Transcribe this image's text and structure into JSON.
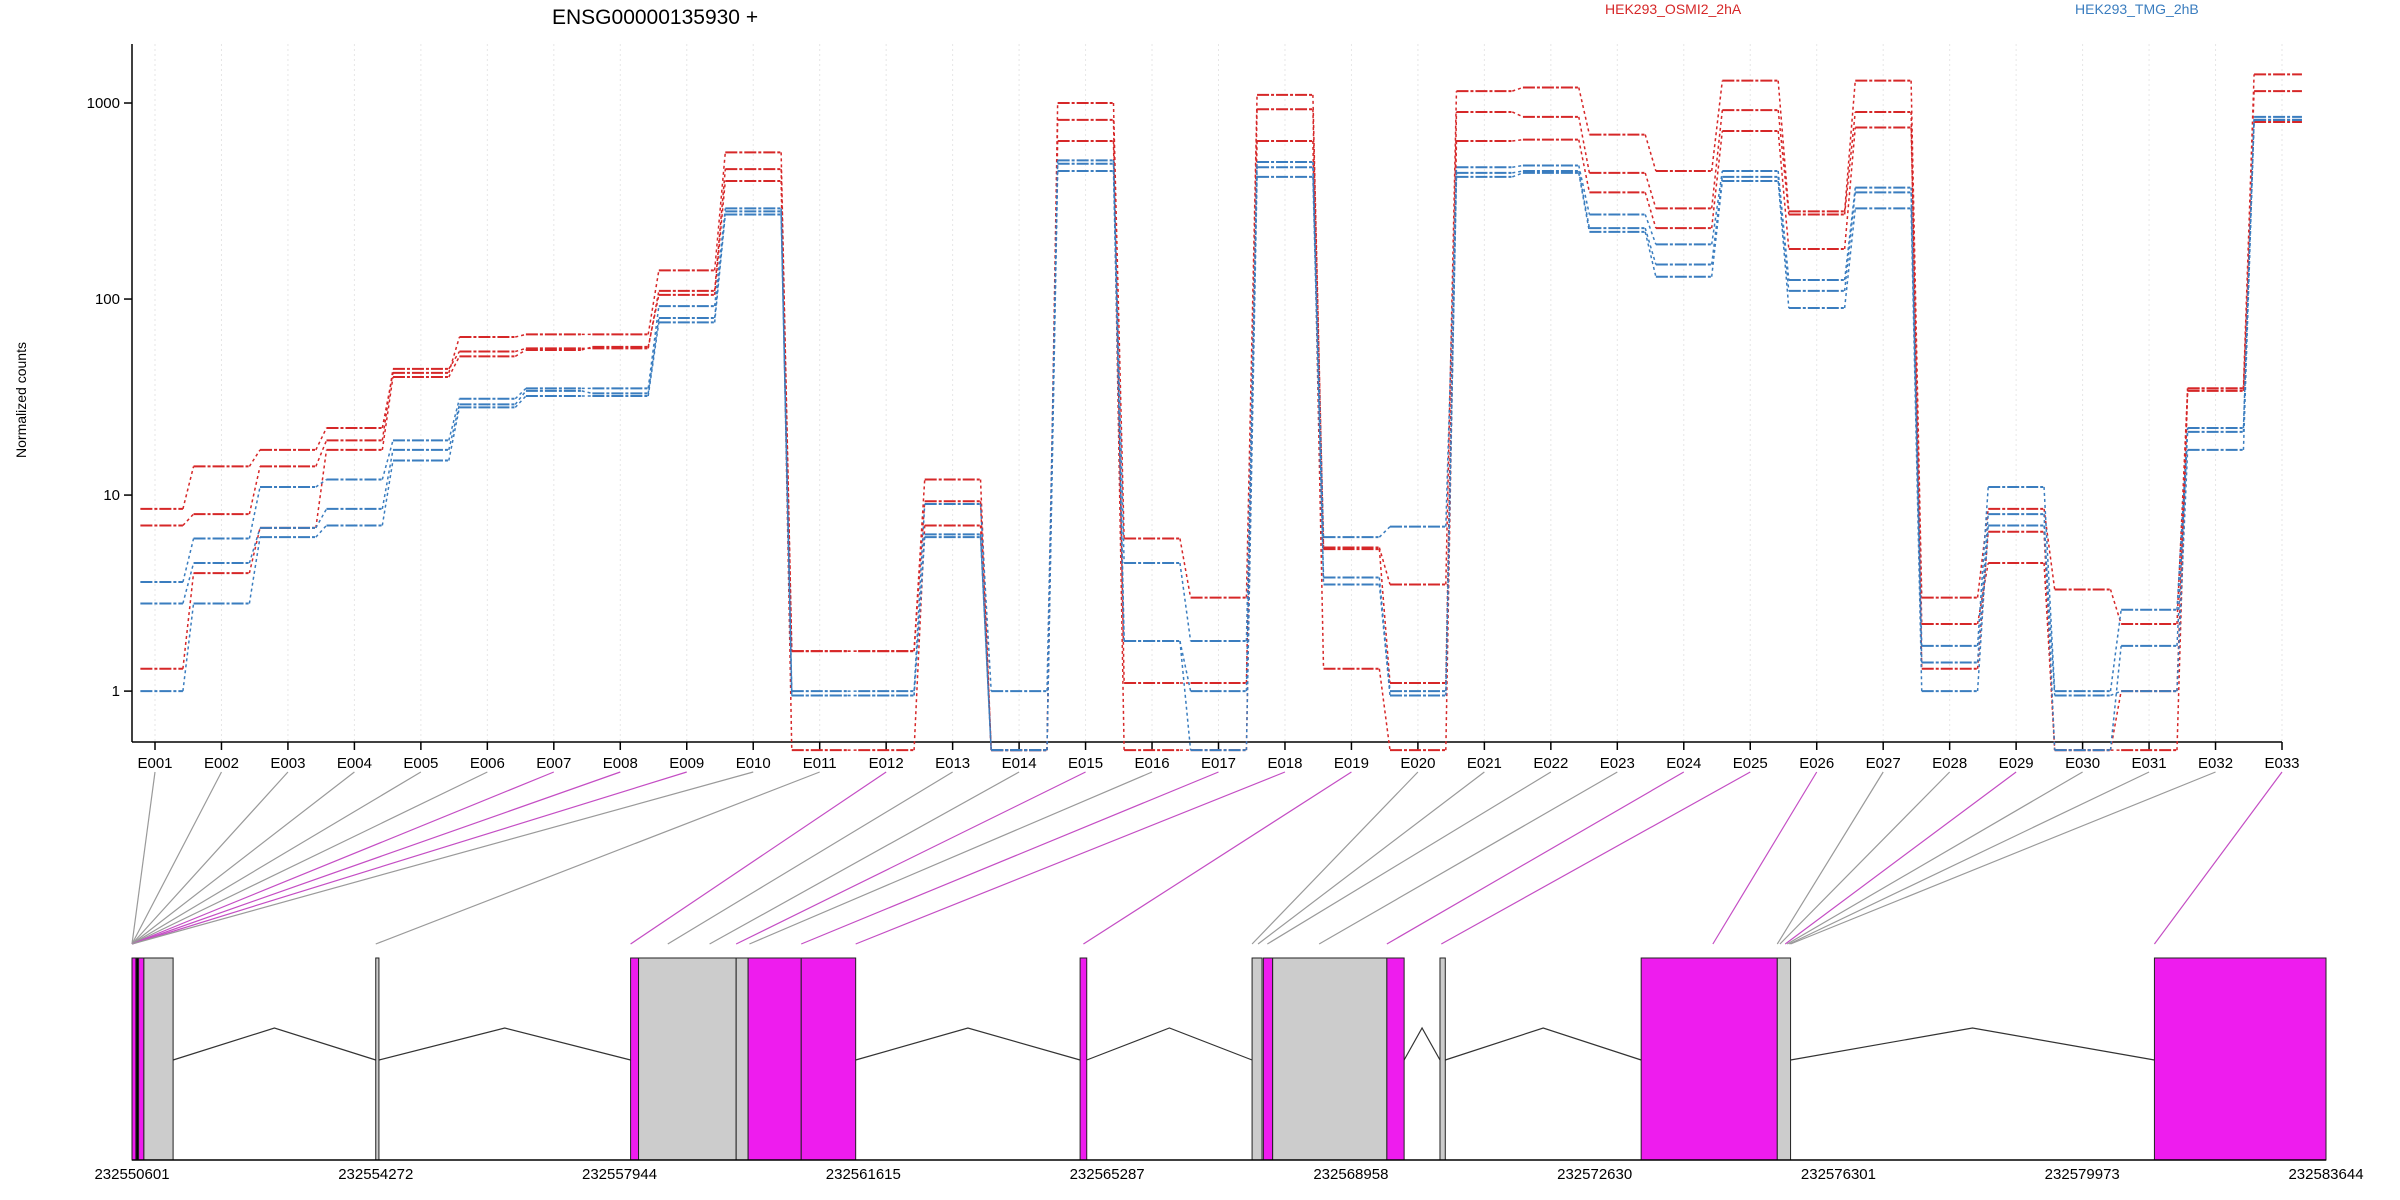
{
  "title": "ENSG00000135930 +",
  "legend": [
    {
      "name": "HEK293_OSMI2_2hA",
      "color": "#d62728"
    },
    {
      "name": "HEK293_TMG_2hB",
      "color": "#3a7dbf"
    }
  ],
  "colors": {
    "red": "#d62728",
    "blue": "#3a7dbf",
    "magenta": "#ee1cee",
    "grey_exon": "#cccccc",
    "gridline": "#e6e6e6"
  },
  "chart_data": [
    {
      "type": "line",
      "title": "ENSG00000135930 +",
      "ylabel": "Normalized counts",
      "xlabel": "",
      "yscale": "log",
      "ylim": [
        0.55,
        2000
      ],
      "yticks": [
        1,
        10,
        100,
        1000
      ],
      "ytick_labels": [
        "1",
        "10",
        "100",
        "1000"
      ],
      "grid": "vertical dotted lines at each exon",
      "legend_position": "top",
      "categories": [
        "E001",
        "E002",
        "E003",
        "E004",
        "E005",
        "E006",
        "E007",
        "E008",
        "E009",
        "E010",
        "E011",
        "E012",
        "E013",
        "E014",
        "E015",
        "E016",
        "E017",
        "E018",
        "E019",
        "E020",
        "E021",
        "E022",
        "E023",
        "E024",
        "E025",
        "E026",
        "E027",
        "E028",
        "E029",
        "E030",
        "E031",
        "E032",
        "E033"
      ],
      "series": [
        {
          "name": "HEK293_OSMI2_2hA",
          "color": "#d62728",
          "values": [
            8.5,
            14,
            17,
            22,
            42,
            64,
            66,
            66,
            140,
            560,
            1.6,
            1.6,
            12,
            0.5,
            1000,
            6,
            3,
            1100,
            5.4,
            3.5,
            1150,
            1200,
            690,
            450,
            1300,
            280,
            1300,
            3,
            8.5,
            3.3,
            2.2,
            35,
            1400
          ]
        },
        {
          "name": "HEK293_OSMI2_2hA",
          "color": "#d62728",
          "values": [
            7,
            8,
            14,
            19,
            44,
            54,
            56,
            56,
            110,
            460,
            1.6,
            1.6,
            9.3,
            0.5,
            820,
            1.1,
            1.1,
            930,
            5.3,
            1.1,
            900,
            850,
            440,
            290,
            920,
            270,
            900,
            1.3,
            6.5,
            0.5,
            1,
            35,
            1150
          ]
        },
        {
          "name": "HEK293_OSMI2_2hA",
          "color": "#d62728",
          "values": [
            1.3,
            4,
            6.8,
            17,
            40,
            51,
            55,
            57,
            105,
            400,
            0.5,
            0.5,
            7,
            0.5,
            640,
            0.5,
            0.5,
            640,
            1.3,
            0.5,
            640,
            650,
            350,
            230,
            720,
            180,
            750,
            2.2,
            4.5,
            0.5,
            0.5,
            34,
            800
          ]
        },
        {
          "name": "HEK293_TMG_2hB",
          "color": "#3a7dbf",
          "values": [
            3.6,
            6,
            11,
            12,
            19,
            31,
            35,
            35,
            92,
            290,
            1,
            1,
            9,
            1,
            510,
            4.5,
            1.8,
            500,
            6.1,
            6.9,
            470,
            480,
            270,
            190,
            450,
            125,
            370,
            1.7,
            11,
            1,
            2.6,
            22,
            850
          ]
        },
        {
          "name": "HEK293_TMG_2hB",
          "color": "#3a7dbf",
          "values": [
            2.8,
            4.5,
            6.8,
            8.5,
            17,
            29,
            34,
            33,
            80,
            280,
            0.95,
            0.95,
            6.3,
            0.5,
            490,
            1.8,
            1,
            470,
            3.8,
            1,
            440,
            450,
            230,
            150,
            420,
            110,
            350,
            1.4,
            8,
            0.5,
            1.7,
            21,
            820
          ]
        },
        {
          "name": "HEK293_TMG_2hB",
          "color": "#3a7dbf",
          "values": [
            1,
            2.8,
            6.1,
            7,
            15,
            28,
            32,
            32,
            76,
            270,
            0.95,
            0.95,
            6.1,
            0.5,
            450,
            1.8,
            0.5,
            420,
            3.5,
            0.95,
            420,
            440,
            220,
            130,
            400,
            90,
            290,
            1,
            7,
            0.95,
            1,
            17,
            820
          ]
        }
      ]
    },
    {
      "type": "gene-model",
      "x_tick_labels": [
        "232550601",
        "232554272",
        "232557944",
        "232561615",
        "232565287",
        "232568958",
        "232572630",
        "232576301",
        "232579973",
        "232583644"
      ],
      "xlim": [
        232550601,
        232583644
      ],
      "exons": [
        {
          "start": 232550601,
          "end": 232550660,
          "color": "magenta"
        },
        {
          "start": 232550660,
          "end": 232550700,
          "color": "black"
        },
        {
          "start": 232550700,
          "end": 232550780,
          "color": "magenta"
        },
        {
          "start": 232550780,
          "end": 232551220,
          "color": "grey"
        },
        {
          "start": 232554272,
          "end": 232554320,
          "color": "grey"
        },
        {
          "start": 232558110,
          "end": 232558230,
          "color": "magenta"
        },
        {
          "start": 232558230,
          "end": 232559700,
          "color": "grey"
        },
        {
          "start": 232559700,
          "end": 232559880,
          "color": "grey"
        },
        {
          "start": 232559880,
          "end": 232560680,
          "color": "magenta"
        },
        {
          "start": 232560680,
          "end": 232561500,
          "color": "magenta"
        },
        {
          "start": 232564880,
          "end": 232564980,
          "color": "magenta"
        },
        {
          "start": 232567470,
          "end": 232567620,
          "color": "grey"
        },
        {
          "start": 232567640,
          "end": 232567780,
          "color": "magenta"
        },
        {
          "start": 232567780,
          "end": 232569500,
          "color": "grey"
        },
        {
          "start": 232569500,
          "end": 232569760,
          "color": "magenta"
        },
        {
          "start": 232570300,
          "end": 232570380,
          "color": "grey"
        },
        {
          "start": 232573330,
          "end": 232575380,
          "color": "magenta"
        },
        {
          "start": 232575380,
          "end": 232575580,
          "color": "grey"
        },
        {
          "start": 232581060,
          "end": 232583644,
          "color": "magenta"
        }
      ],
      "introns": [
        [
          232551220,
          232554272
        ],
        [
          232554320,
          232558110
        ],
        [
          232561500,
          232564880
        ],
        [
          232564980,
          232567470
        ],
        [
          232569760,
          232570300
        ],
        [
          232570380,
          232573330
        ],
        [
          232575580,
          232581060
        ]
      ],
      "exon_links": [
        {
          "exon": "E001",
          "pos": 232550601,
          "color": "grey"
        },
        {
          "exon": "E002",
          "pos": 232550601,
          "color": "grey"
        },
        {
          "exon": "E003",
          "pos": 232550601,
          "color": "grey"
        },
        {
          "exon": "E004",
          "pos": 232550601,
          "color": "grey"
        },
        {
          "exon": "E005",
          "pos": 232550601,
          "color": "grey"
        },
        {
          "exon": "E006",
          "pos": 232550601,
          "color": "grey"
        },
        {
          "exon": "E007",
          "pos": 232550601,
          "color": "magenta"
        },
        {
          "exon": "E008",
          "pos": 232550601,
          "color": "magenta"
        },
        {
          "exon": "E009",
          "pos": 232550601,
          "color": "magenta"
        },
        {
          "exon": "E010",
          "pos": 232550601,
          "color": "grey"
        },
        {
          "exon": "E011",
          "pos": 232554272,
          "color": "grey"
        },
        {
          "exon": "E012",
          "pos": 232558110,
          "color": "magenta"
        },
        {
          "exon": "E013",
          "pos": 232558670,
          "color": "grey"
        },
        {
          "exon": "E014",
          "pos": 232559300,
          "color": "grey"
        },
        {
          "exon": "E015",
          "pos": 232559700,
          "color": "magenta"
        },
        {
          "exon": "E016",
          "pos": 232559900,
          "color": "grey"
        },
        {
          "exon": "E017",
          "pos": 232560680,
          "color": "magenta"
        },
        {
          "exon": "E018",
          "pos": 232561500,
          "color": "magenta"
        },
        {
          "exon": "E019",
          "pos": 232564930,
          "color": "magenta"
        },
        {
          "exon": "E020",
          "pos": 232567470,
          "color": "grey"
        },
        {
          "exon": "E021",
          "pos": 232567560,
          "color": "grey"
        },
        {
          "exon": "E022",
          "pos": 232567700,
          "color": "grey"
        },
        {
          "exon": "E023",
          "pos": 232568480,
          "color": "grey"
        },
        {
          "exon": "E024",
          "pos": 232569500,
          "color": "magenta"
        },
        {
          "exon": "E025",
          "pos": 232570320,
          "color": "magenta"
        },
        {
          "exon": "E026",
          "pos": 232574410,
          "color": "magenta"
        },
        {
          "exon": "E027",
          "pos": 232575380,
          "color": "grey"
        },
        {
          "exon": "E028",
          "pos": 232575420,
          "color": "grey"
        },
        {
          "exon": "E029",
          "pos": 232575500,
          "color": "magenta"
        },
        {
          "exon": "E030",
          "pos": 232575530,
          "color": "grey"
        },
        {
          "exon": "E031",
          "pos": 232575560,
          "color": "grey"
        },
        {
          "exon": "E032",
          "pos": 232575580,
          "color": "grey"
        },
        {
          "exon": "E033",
          "pos": 232581060,
          "color": "magenta"
        }
      ]
    }
  ]
}
